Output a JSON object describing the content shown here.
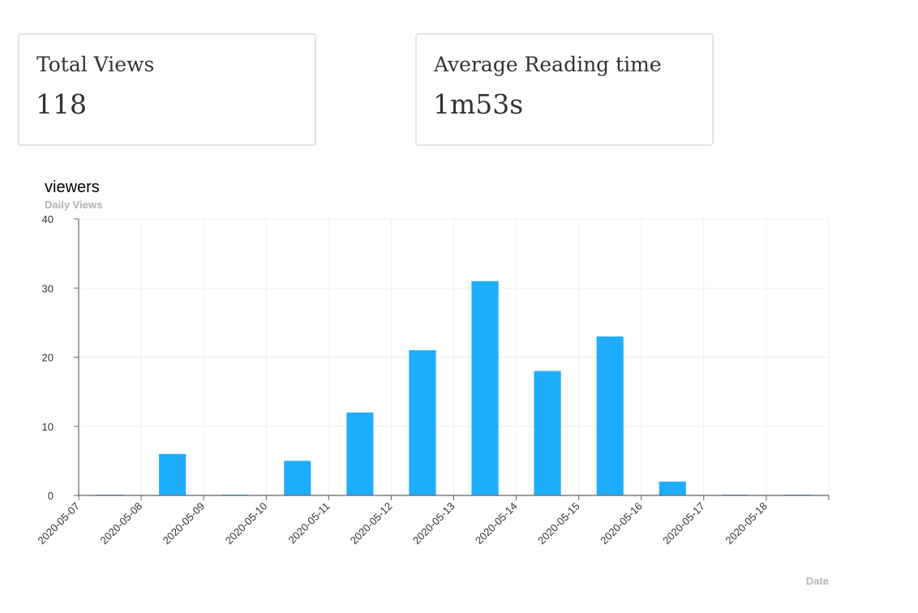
{
  "cards": [
    {
      "title": "Total Views",
      "value": "118"
    },
    {
      "title": "Average Reading time",
      "value": "1m53s"
    }
  ],
  "chart_data": {
    "type": "bar",
    "title": "viewers",
    "subtitle": "Daily Views",
    "xlabel": "Date",
    "ylabel": "",
    "ylim": [
      0,
      40
    ],
    "yticks": [
      0,
      10,
      20,
      30,
      40
    ],
    "x_ticks": [
      "2020-05-07",
      "2020-05-08",
      "2020-05-09",
      "2020-05-10",
      "2020-05-11",
      "2020-05-12",
      "2020-05-13",
      "2020-05-14",
      "2020-05-15",
      "2020-05-16",
      "2020-05-17",
      "2020-05-18"
    ],
    "x": [
      "2020-05-07",
      "2020-05-08",
      "2020-05-09",
      "2020-05-10",
      "2020-05-11",
      "2020-05-12",
      "2020-05-13",
      "2020-05-14",
      "2020-05-15",
      "2020-05-16",
      "2020-05-17",
      "2020-05-18"
    ],
    "values": [
      0,
      6,
      0,
      5,
      12,
      21,
      31,
      18,
      23,
      2,
      0,
      0
    ],
    "bar_color": "#1eadfc",
    "grid": true
  }
}
